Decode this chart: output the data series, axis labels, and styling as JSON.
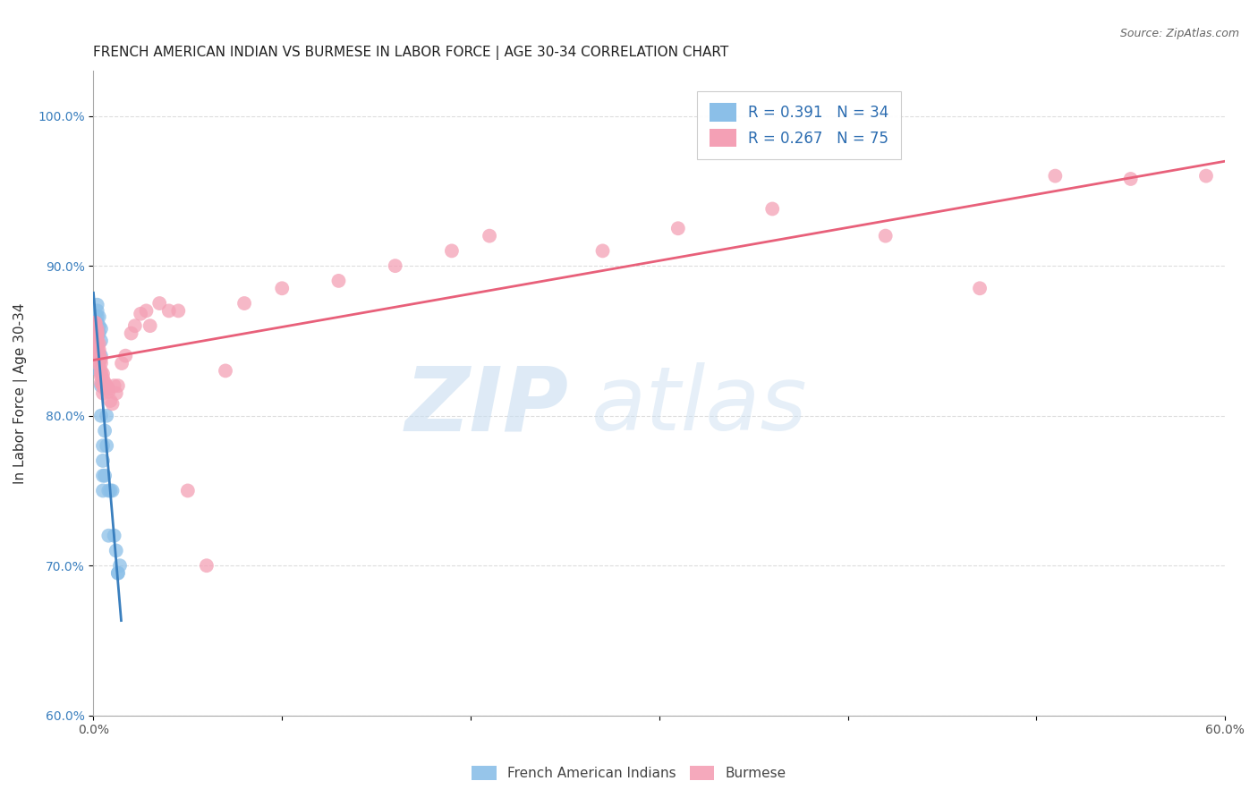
{
  "title": "FRENCH AMERICAN INDIAN VS BURMESE IN LABOR FORCE | AGE 30-34 CORRELATION CHART",
  "source": "Source: ZipAtlas.com",
  "ylabel": "In Labor Force | Age 30-34",
  "xlim": [
    0.0,
    0.6
  ],
  "ylim": [
    0.6,
    1.03
  ],
  "xticks": [
    0.0,
    0.1,
    0.2,
    0.3,
    0.4,
    0.5,
    0.6
  ],
  "xticklabels": [
    "0.0%",
    "",
    "",
    "",
    "",
    "",
    "60.0%"
  ],
  "yticks": [
    0.6,
    0.7,
    0.8,
    0.9,
    1.0
  ],
  "yticklabels": [
    "60.0%",
    "70.0%",
    "80.0%",
    "90.0%",
    "100.0%"
  ],
  "blue_color": "#8bbfe8",
  "pink_color": "#f4a0b5",
  "blue_line_color": "#3a7fbe",
  "pink_line_color": "#e8607a",
  "legend_text_color": "#2b6cb0",
  "R_blue": 0.391,
  "N_blue": 34,
  "R_pink": 0.267,
  "N_pink": 75,
  "blue_points_x": [
    0.001,
    0.001,
    0.002,
    0.002,
    0.002,
    0.002,
    0.002,
    0.003,
    0.003,
    0.003,
    0.003,
    0.003,
    0.004,
    0.004,
    0.004,
    0.004,
    0.004,
    0.005,
    0.005,
    0.005,
    0.005,
    0.006,
    0.006,
    0.007,
    0.007,
    0.008,
    0.008,
    0.009,
    0.01,
    0.011,
    0.012,
    0.013,
    0.013,
    0.014
  ],
  "blue_points_y": [
    0.858,
    0.862,
    0.858,
    0.862,
    0.866,
    0.87,
    0.874,
    0.855,
    0.86,
    0.866,
    0.838,
    0.83,
    0.85,
    0.858,
    0.84,
    0.82,
    0.8,
    0.75,
    0.76,
    0.77,
    0.78,
    0.79,
    0.76,
    0.78,
    0.8,
    0.75,
    0.72,
    0.75,
    0.75,
    0.72,
    0.71,
    0.695,
    0.695,
    0.7
  ],
  "pink_points_x": [
    0.001,
    0.001,
    0.001,
    0.001,
    0.001,
    0.001,
    0.001,
    0.001,
    0.002,
    0.002,
    0.002,
    0.002,
    0.002,
    0.002,
    0.002,
    0.002,
    0.002,
    0.002,
    0.003,
    0.003,
    0.003,
    0.003,
    0.003,
    0.003,
    0.003,
    0.003,
    0.004,
    0.004,
    0.004,
    0.004,
    0.004,
    0.004,
    0.005,
    0.005,
    0.005,
    0.005,
    0.005,
    0.006,
    0.006,
    0.006,
    0.007,
    0.008,
    0.008,
    0.009,
    0.01,
    0.011,
    0.012,
    0.013,
    0.015,
    0.017,
    0.02,
    0.022,
    0.025,
    0.028,
    0.03,
    0.035,
    0.04,
    0.045,
    0.05,
    0.06,
    0.07,
    0.08,
    0.1,
    0.13,
    0.16,
    0.19,
    0.21,
    0.27,
    0.31,
    0.36,
    0.42,
    0.47,
    0.51,
    0.55,
    0.59
  ],
  "pink_points_y": [
    0.858,
    0.86,
    0.862,
    0.862,
    0.858,
    0.854,
    0.856,
    0.858,
    0.855,
    0.858,
    0.856,
    0.85,
    0.848,
    0.852,
    0.854,
    0.846,
    0.844,
    0.842,
    0.84,
    0.844,
    0.848,
    0.838,
    0.842,
    0.836,
    0.84,
    0.834,
    0.835,
    0.838,
    0.83,
    0.826,
    0.822,
    0.828,
    0.825,
    0.82,
    0.828,
    0.82,
    0.815,
    0.818,
    0.82,
    0.822,
    0.82,
    0.818,
    0.816,
    0.81,
    0.808,
    0.82,
    0.815,
    0.82,
    0.835,
    0.84,
    0.855,
    0.86,
    0.868,
    0.87,
    0.86,
    0.875,
    0.87,
    0.87,
    0.75,
    0.7,
    0.83,
    0.875,
    0.885,
    0.89,
    0.9,
    0.91,
    0.92,
    0.91,
    0.925,
    0.938,
    0.92,
    0.885,
    0.96,
    0.958,
    0.96
  ],
  "grid_color": "#dddddd",
  "bg_color": "#ffffff",
  "title_fontsize": 11,
  "axis_label_fontsize": 11,
  "tick_fontsize": 10,
  "legend_fontsize": 12
}
